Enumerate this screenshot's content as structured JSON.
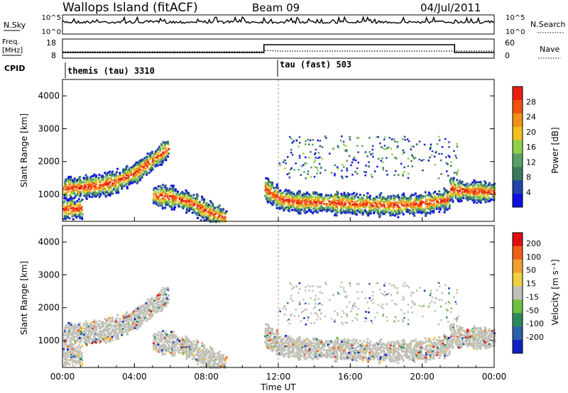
{
  "header": {
    "title": "Wallops Island (fitACF)",
    "beam": "Beam 09",
    "date": "04/Jul/2011"
  },
  "panel_labels": {
    "nsky": "N.Sky",
    "nsky_ticks": [
      "10^5",
      "10^0"
    ],
    "nsearch": "N.Search",
    "nsearch_ticks": [
      "10^5",
      "10^0"
    ],
    "freq_line1": "Freq.",
    "freq_line2": "[MHz]",
    "freq_ticks": [
      "18",
      "8"
    ],
    "nave": "Nave",
    "nave_ticks": [
      "60",
      "0"
    ],
    "cpid": "CPID"
  },
  "cpid_segments": [
    {
      "label": "themis (tau) 3310",
      "start_hour": 0
    },
    {
      "label": "tau (fast) 503",
      "start_hour": 12
    }
  ],
  "axes": {
    "xlabel": "Time UT",
    "xticks": [
      "00:00",
      "04:00",
      "08:00",
      "12:00",
      "16:00",
      "20:00",
      "00:00"
    ],
    "ylabel": "Slant Range [km]",
    "yticks": [
      "1000",
      "2000",
      "3000",
      "4000"
    ],
    "ylim": [
      180,
      4500
    ],
    "xlim": [
      0,
      24
    ]
  },
  "power_scale": {
    "label": "Power [dB]",
    "ticks": [
      "4",
      "8",
      "12",
      "16",
      "20",
      "24",
      "28"
    ],
    "colors": [
      "#1010e0",
      "#2244aa",
      "#3a7a5a",
      "#58a068",
      "#8fcf4a",
      "#f0c020",
      "#f09018",
      "#f05010",
      "#e82010"
    ]
  },
  "velocity_scale": {
    "label": "Velocity [m s⁻¹]",
    "ticks": [
      "200",
      "100",
      "50",
      "15",
      "-15",
      "-50",
      "-100",
      "-200"
    ],
    "colors": [
      "#1020c0",
      "#2a60a8",
      "#2a8a5a",
      "#6cc040",
      "#c0c0b8",
      "#f0d040",
      "#f0a030",
      "#f06018",
      "#e01010"
    ]
  },
  "chart_data": [
    {
      "type": "heatmap",
      "name": "Power",
      "xlabel": "Time UT",
      "ylabel": "Slant Range [km]",
      "colorbar_label": "Power [dB]",
      "xlim": [
        0,
        24
      ],
      "ylim": [
        180,
        4500
      ],
      "echo_bands": [
        {
          "x": [
            0,
            1,
            2,
            3,
            4,
            5,
            5.8
          ],
          "y": [
            1200,
            1250,
            1300,
            1450,
            1700,
            2100,
            2450
          ]
        },
        {
          "x": [
            0,
            1
          ],
          "y": [
            600,
            600
          ]
        },
        {
          "x": [
            5,
            6,
            7,
            8,
            9
          ],
          "y": [
            1000,
            950,
            800,
            500,
            300
          ]
        },
        {
          "x": [
            11.2,
            12,
            13,
            14,
            16,
            18,
            20,
            21.5
          ],
          "y": [
            1200,
            900,
            800,
            800,
            750,
            700,
            750,
            900
          ]
        },
        {
          "x": [
            21.5,
            22,
            24
          ],
          "y": [
            1200,
            1150,
            1100
          ]
        }
      ]
    },
    {
      "type": "heatmap",
      "name": "Velocity",
      "xlabel": "Time UT",
      "ylabel": "Slant Range [km]",
      "colorbar_label": "Velocity [m s⁻¹]",
      "xlim": [
        0,
        24
      ],
      "ylim": [
        180,
        4500
      ]
    }
  ]
}
